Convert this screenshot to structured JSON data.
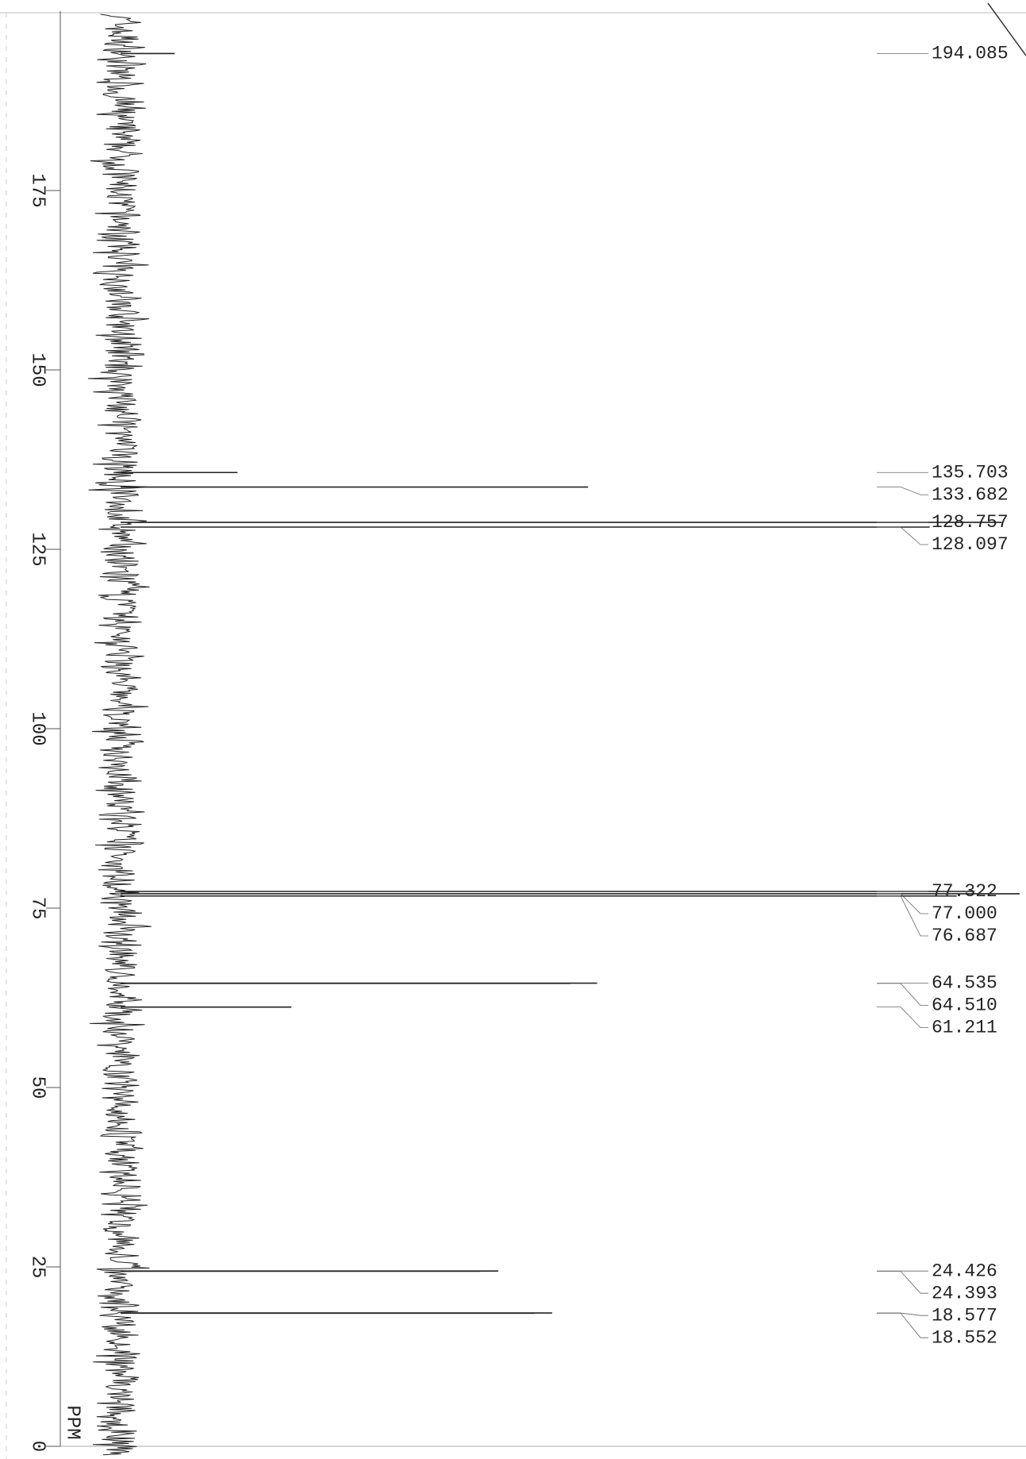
{
  "chart_data": {
    "type": "spectrum",
    "x_label": "PPM",
    "xlim": [
      0,
      200
    ],
    "xticks": [
      0,
      25,
      50,
      75,
      100,
      125,
      150,
      175
    ],
    "ylim": [
      0,
      100
    ],
    "color": "#222222",
    "x": [
      194.085,
      135.703,
      133.682,
      128.757,
      128.097,
      77.322,
      {
        "value": 77,
        "label": "77.000"
      },
      76.687,
      64.535,
      {
        "value": 64.51,
        "label": "64.510"
      },
      61.211,
      24.426,
      24.393,
      18.577,
      18.552
    ],
    "values": [
      6,
      13,
      52,
      98,
      90,
      95,
      100,
      93,
      53,
      50,
      19,
      42,
      40,
      48,
      46
    ]
  }
}
